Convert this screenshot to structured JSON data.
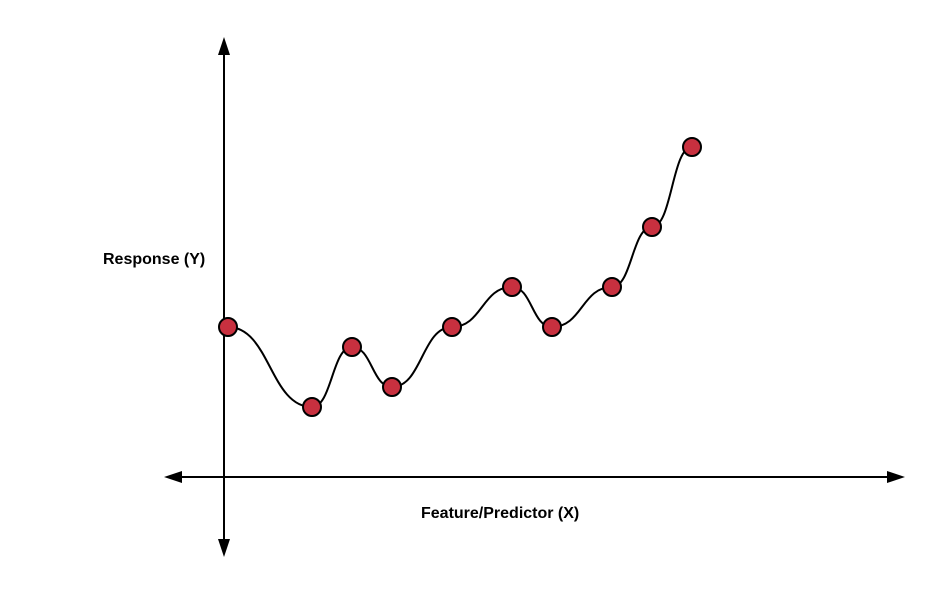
{
  "chart_data": {
    "type": "scatter",
    "xlabel": "Feature/Predictor (X)",
    "ylabel": "Response (Y)",
    "points": [
      {
        "x": 0.1,
        "y": 3.75
      },
      {
        "x": 2.2,
        "y": 1.75
      },
      {
        "x": 3.2,
        "y": 3.25
      },
      {
        "x": 4.2,
        "y": 2.25
      },
      {
        "x": 5.7,
        "y": 3.75
      },
      {
        "x": 7.2,
        "y": 4.75
      },
      {
        "x": 8.2,
        "y": 3.75
      },
      {
        "x": 9.7,
        "y": 4.75
      },
      {
        "x": 10.7,
        "y": 6.25
      },
      {
        "x": 11.7,
        "y": 8.25
      }
    ],
    "fit_curve": "smooth curve through all points",
    "colors": {
      "point_fill": "#c8303f",
      "point_stroke": "#000000",
      "curve": "#000000",
      "axes": "#000000"
    }
  }
}
